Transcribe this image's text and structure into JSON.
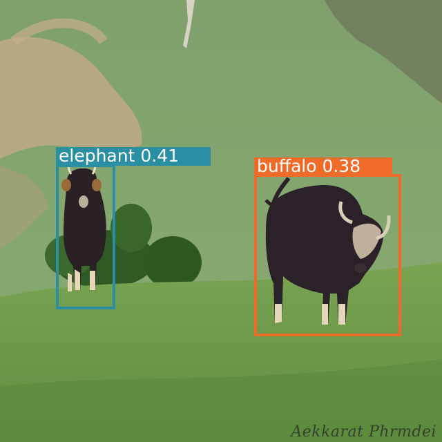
{
  "image": {
    "description_colors": {
      "hillside": "#84a66f",
      "meadow": "#6f9a4e",
      "animal": "#2a2126"
    }
  },
  "detections": [
    {
      "label": "elephant",
      "score": "0.41",
      "text": "elephant 0.41",
      "color": "#2b8fa3"
    },
    {
      "label": "buffalo",
      "score": "0.38",
      "text": "buffalo 0.38",
      "color": "#f06a2a"
    }
  ],
  "watermark": {
    "text": "Aekkarat Phrmdei"
  }
}
